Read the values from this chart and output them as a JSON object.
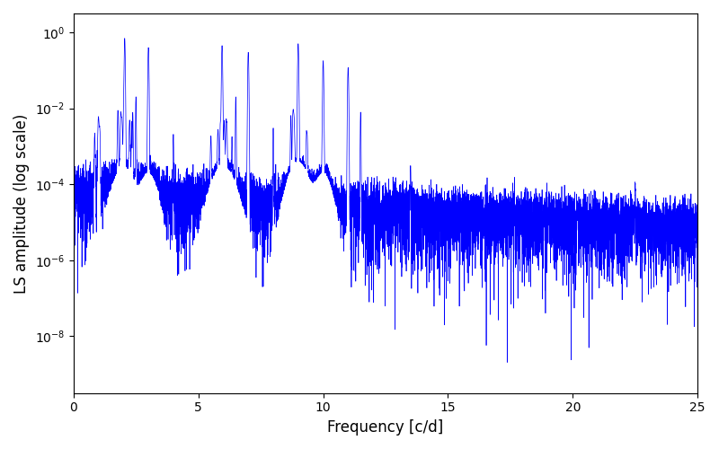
{
  "title": "",
  "xlabel": "Frequency [c/d]",
  "ylabel": "LS amplitude (log scale)",
  "xlim": [
    0,
    25
  ],
  "ylim_log_min": -9.5,
  "ylim_log_max": 0.5,
  "line_color": "#0000FF",
  "line_width": 0.5,
  "background_color": "#ffffff",
  "figsize": [
    8.0,
    5.0
  ],
  "dpi": 100,
  "yticks": [
    1e-08,
    1e-06,
    0.0001,
    0.01,
    1.0
  ],
  "n_points": 8000,
  "freq_max": 25.0,
  "seed": 7
}
